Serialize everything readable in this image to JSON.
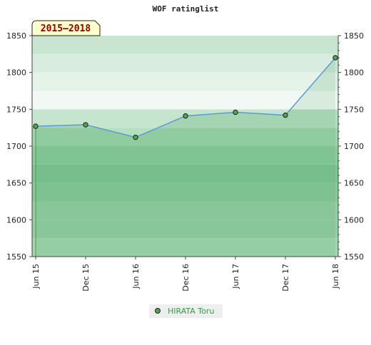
{
  "chart_data": {
    "type": "line",
    "title": "WOF ratinglist",
    "badge": "2015–2018",
    "categories": [
      "Jun 15",
      "Dec 15",
      "Jun 16",
      "Dec 16",
      "Jun 17",
      "Dec 17",
      "Jun 18"
    ],
    "series": [
      {
        "name": "HIRATA Toru",
        "color": "#4fa64f",
        "values": [
          1727,
          1729,
          1712,
          1741,
          1746,
          1742,
          1820
        ]
      }
    ],
    "ylim": [
      1550,
      1850
    ],
    "yticks": [
      1550,
      1600,
      1650,
      1700,
      1750,
      1800,
      1850
    ]
  }
}
